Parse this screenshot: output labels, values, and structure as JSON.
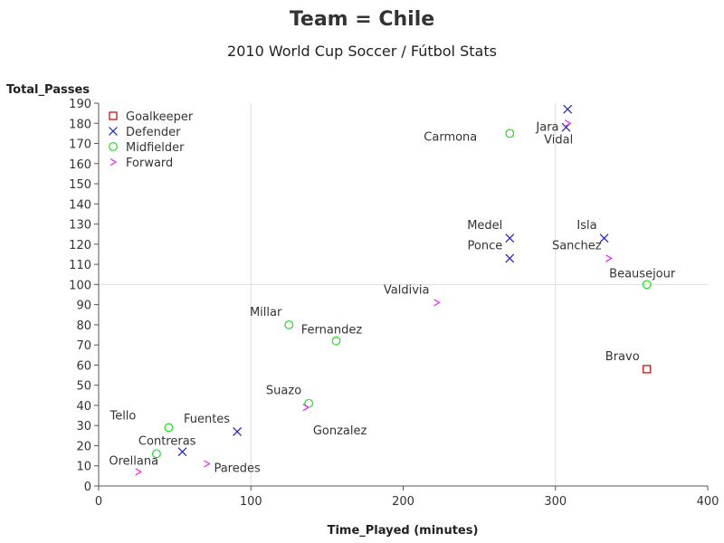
{
  "title": "Team = Chile",
  "subtitle": "2010 World Cup Soccer / Fútbol Stats",
  "chart_data": {
    "type": "scatter",
    "xlabel": "Time_Played (minutes)",
    "ylabel": "Total_Passes",
    "xlim": [
      0,
      400
    ],
    "ylim": [
      0,
      190
    ],
    "x_ticks": [
      0,
      100,
      200,
      300,
      400
    ],
    "y_ticks": [
      0,
      10,
      20,
      30,
      40,
      50,
      60,
      70,
      80,
      90,
      100,
      110,
      120,
      130,
      140,
      150,
      160,
      170,
      180,
      190
    ],
    "reference_lines": {
      "x": [
        100,
        300
      ],
      "y": [
        100
      ],
      "color": "#dddddd"
    },
    "legend_position": "top-left",
    "series": [
      {
        "name": "Goalkeeper",
        "marker": "square",
        "color": "#cc0000",
        "points": [
          {
            "label": "Bravo",
            "x": 360,
            "y": 58,
            "label_pos": "above-left"
          }
        ]
      },
      {
        "name": "Defender",
        "marker": "x",
        "color": "#2222bb",
        "points": [
          {
            "label": "",
            "x": 308,
            "y": 187,
            "label_pos": "none"
          },
          {
            "label": "Jara",
            "x": 307,
            "y": 178,
            "label_pos": "left"
          },
          {
            "label": "Medel",
            "x": 270,
            "y": 123,
            "label_pos": "above-left"
          },
          {
            "label": "Ponce",
            "x": 270,
            "y": 113,
            "label_pos": "above-left"
          },
          {
            "label": "Isla",
            "x": 332,
            "y": 123,
            "label_pos": "above-left"
          },
          {
            "label": "Fuentes",
            "x": 91,
            "y": 27,
            "label_pos": "above-left"
          },
          {
            "label": "",
            "x": 55,
            "y": 17,
            "label_pos": "none"
          }
        ]
      },
      {
        "name": "Midfielder",
        "marker": "circle",
        "color": "#22dd22",
        "points": [
          {
            "label": "Carmona",
            "x": 270,
            "y": 175,
            "label_pos": "left-far"
          },
          {
            "label": "Beausejour",
            "x": 360,
            "y": 100,
            "label_pos": "above"
          },
          {
            "label": "Millar",
            "x": 125,
            "y": 80,
            "label_pos": "above-left"
          },
          {
            "label": "Fernandez",
            "x": 156,
            "y": 72,
            "label_pos": "above"
          },
          {
            "label": "Suazo",
            "x": 138,
            "y": 41,
            "label_pos": "above-left"
          },
          {
            "label": "Tello",
            "x": 46,
            "y": 29,
            "label_pos": "above-left-far"
          },
          {
            "label": "Contreras",
            "x": 38,
            "y": 16,
            "label_pos": "above-right"
          }
        ]
      },
      {
        "name": "Forward",
        "marker": "chevron",
        "color": "#ee22ee",
        "points": [
          {
            "label": "Vidal",
            "x": 308,
            "y": 180,
            "label_pos": "below"
          },
          {
            "label": "Sanchez",
            "x": 335,
            "y": 113,
            "label_pos": "above-left"
          },
          {
            "label": "Valdivia",
            "x": 222,
            "y": 91,
            "label_pos": "above-left"
          },
          {
            "label": "Gonzalez",
            "x": 136,
            "y": 39,
            "label_pos": "below-right"
          },
          {
            "label": "Paredes",
            "x": 71,
            "y": 11,
            "label_pos": "right"
          },
          {
            "label": "Orellana",
            "x": 26,
            "y": 7,
            "label_pos": "above"
          }
        ]
      }
    ]
  }
}
